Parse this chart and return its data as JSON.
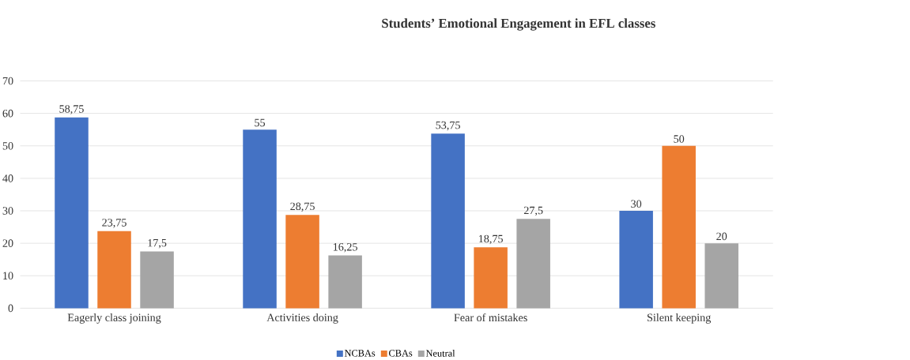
{
  "chart_data": {
    "type": "bar",
    "title": "Students’ Emotional Engagement in EFL classes",
    "categories": [
      "Eagerly class joining",
      "Activities doing",
      "Fear of mistakes",
      "Silent keeping"
    ],
    "series": [
      {
        "name": "NCBAs",
        "color": "#4472c4",
        "values": [
          58.75,
          55,
          53.75,
          30
        ],
        "value_labels": [
          "58,75",
          "55",
          "53,75",
          "30"
        ]
      },
      {
        "name": "CBAs",
        "color": "#ed7d31",
        "values": [
          23.75,
          28.75,
          18.75,
          50
        ],
        "value_labels": [
          "23,75",
          "28,75",
          "18,75",
          "50"
        ]
      },
      {
        "name": "Neutral",
        "color": "#a5a5a5",
        "values": [
          17.5,
          16.25,
          27.5,
          20
        ],
        "value_labels": [
          "17,5",
          "16,25",
          "27,5",
          "20"
        ]
      }
    ],
    "ylim": [
      0,
      70
    ],
    "yticks": [
      0,
      10,
      20,
      30,
      40,
      50,
      60,
      70
    ],
    "grid": "y",
    "legend": "bottom"
  }
}
